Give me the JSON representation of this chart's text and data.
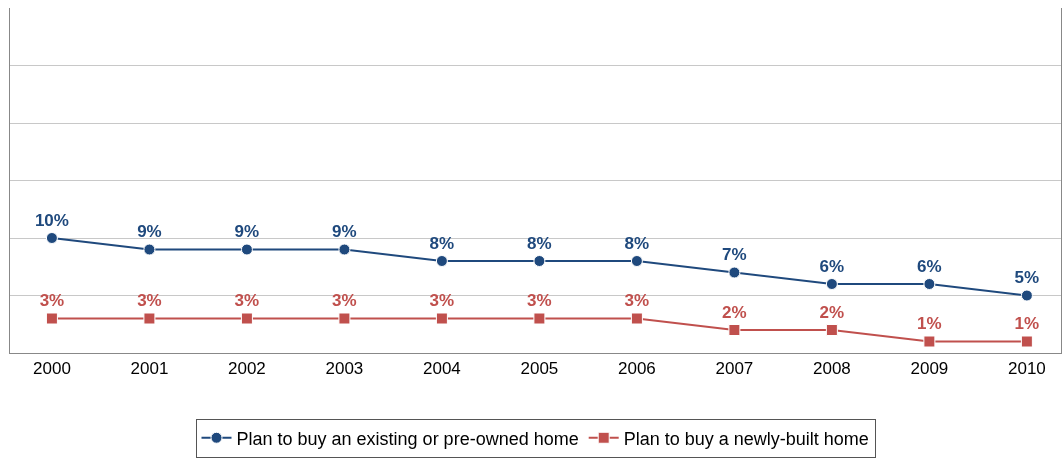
{
  "chart_data": {
    "type": "line",
    "categories": [
      "2000",
      "2001",
      "2002",
      "2003",
      "2004",
      "2005",
      "2006",
      "2007",
      "2008",
      "2009",
      "2010"
    ],
    "series": [
      {
        "name": "Plan to buy an existing or pre-owned home",
        "color": "#1f497d",
        "marker": "circle",
        "values": [
          10,
          9,
          9,
          9,
          8,
          8,
          8,
          7,
          6,
          6,
          5
        ],
        "value_labels": [
          "10%",
          "9%",
          "9%",
          "9%",
          "8%",
          "8%",
          "8%",
          "7%",
          "6%",
          "6%",
          "5%"
        ]
      },
      {
        "name": "Plan to buy a newly-built home",
        "color": "#c0504d",
        "marker": "square",
        "values": [
          3,
          3,
          3,
          3,
          3,
          3,
          3,
          2,
          2,
          1,
          1
        ],
        "value_labels": [
          "3%",
          "3%",
          "3%",
          "3%",
          "3%",
          "3%",
          "3%",
          "2%",
          "2%",
          "1%",
          "1%"
        ]
      }
    ],
    "ylim": [
      0,
      30
    ],
    "yticks": [
      {
        "value": 0,
        "label": null
      },
      {
        "value": 5,
        "label": null
      },
      {
        "value": 10,
        "label": null
      },
      {
        "value": 15,
        "label": null
      },
      {
        "value": 20,
        "label": null
      },
      {
        "value": 25,
        "label": null
      }
    ],
    "grid": "y",
    "legend": "bottom",
    "tick_labels": "x",
    "line_style": "solid"
  }
}
